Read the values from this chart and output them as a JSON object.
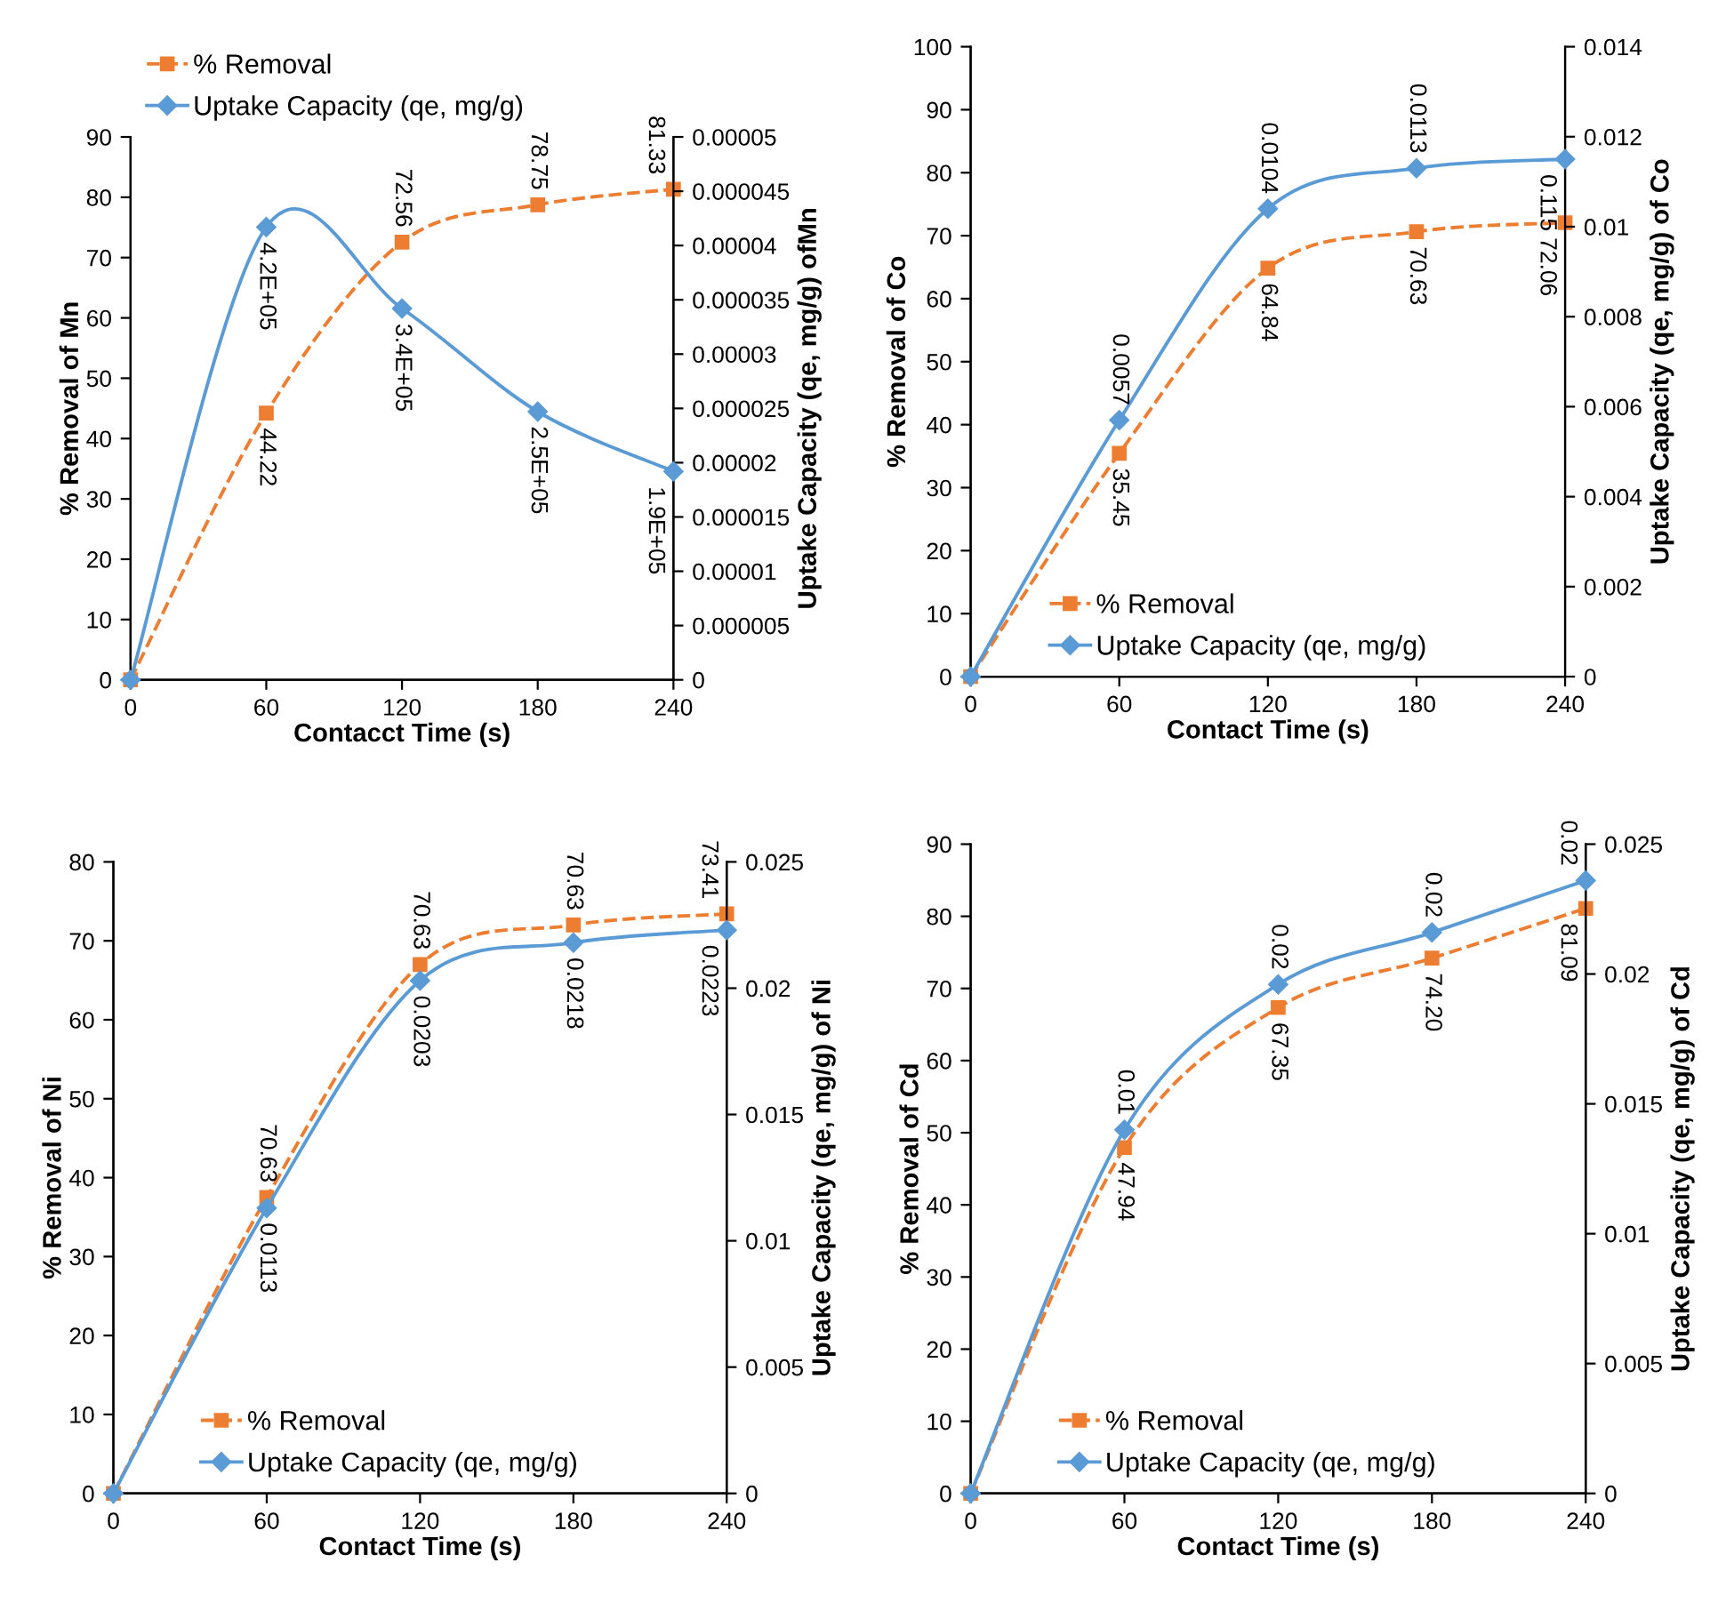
{
  "chart_data": [
    {
      "type": "line",
      "xlabel": "Contacct Time (s)",
      "ylabel": "% Removal of Mn",
      "y2label": "Uptake Capacity (qe, mg/g) ofMn",
      "x": [
        0,
        60,
        120,
        180,
        240
      ],
      "xlim": [
        0,
        240
      ],
      "xticks": [
        0,
        60,
        120,
        180,
        240
      ],
      "ylim": [
        0,
        90
      ],
      "yticks": [
        0,
        10,
        20,
        30,
        40,
        50,
        60,
        70,
        80,
        90
      ],
      "y2lim": [
        0,
        5e-05
      ],
      "y2ticks": [
        0,
        {
          "value": 5e-06,
          "label": "0.000005"
        },
        {
          "value": 1e-05,
          "label": "0.00001"
        },
        {
          "value": 1.5e-05,
          "label": "0.000015"
        },
        {
          "value": 2e-05,
          "label": "0.00002"
        },
        {
          "value": 2.5e-05,
          "label": "0.000025"
        },
        {
          "value": 3e-05,
          "label": "0.00003"
        },
        {
          "value": 3.5e-05,
          "label": "0.000035"
        },
        {
          "value": 4e-05,
          "label": "0.00004"
        },
        {
          "value": 4.5e-05,
          "label": "0.000045"
        },
        {
          "value": 5e-05,
          "label": "0.00005"
        }
      ],
      "legend": "top left",
      "grid": false,
      "annotations": [
        {
          "text": "4.2E+05",
          "x": 60,
          "y": 75
        },
        {
          "text": "3.4E+05",
          "x": 120,
          "y": 61.5
        },
        {
          "text": "2.5E+05",
          "x": 180,
          "y": 44.5
        },
        {
          "text": "1.9E+05",
          "x": 240,
          "y": 34.5
        }
      ],
      "series": [
        {
          "name": "% Removal",
          "color": "#ed7d31",
          "marker": "square",
          "line_style": "dashed",
          "values": [
            0,
            44.22,
            72.56,
            78.75,
            81.33
          ],
          "value_labels": [
            null,
            "44.22",
            "72.56",
            "78.75",
            "81.33"
          ]
        },
        {
          "name": "Uptake Capacity (qe, mg/g)",
          "color": "#5b9bd5",
          "marker": "diamond",
          "line_style": "solid",
          "axis": "y2",
          "values": [
            0,
            4.17e-05,
            3.42e-05,
            2.47e-05,
            1.92e-05
          ]
        }
      ]
    },
    {
      "type": "line",
      "xlabel": "Contact Time (s)",
      "ylabel": "% Removal of Co",
      "y2label": "Uptake Capacity (qe, mg/g) of Co",
      "x": [
        0,
        60,
        120,
        180,
        240
      ],
      "xlim": [
        0,
        240
      ],
      "xticks": [
        0,
        60,
        120,
        180,
        240
      ],
      "ylim": [
        0,
        100
      ],
      "yticks": [
        0,
        10,
        20,
        30,
        40,
        50,
        60,
        70,
        80,
        90,
        100
      ],
      "y2lim": [
        0,
        0.014
      ],
      "y2ticks": [
        0,
        0.002,
        0.004,
        0.006,
        0.008,
        0.01,
        0.012,
        0.014
      ],
      "legend": "bottom",
      "grid": false,
      "annotations": [
        {
          "text": "0.115",
          "x": 240,
          "y": 82.1
        }
      ],
      "series": [
        {
          "name": "% Removal",
          "color": "#ed7d31",
          "marker": "square",
          "line_style": "dashed",
          "values": [
            0,
            35.45,
            64.84,
            70.63,
            72.06
          ],
          "value_labels": [
            null,
            "35.45",
            "64.84",
            "70.63",
            "72.06"
          ]
        },
        {
          "name": "Uptake Capacity (qe, mg/g)",
          "color": "#5b9bd5",
          "marker": "diamond",
          "line_style": "solid",
          "axis": "y2",
          "values": [
            0,
            0.0057,
            0.0104,
            0.0113,
            0.0115
          ],
          "value_labels": [
            null,
            "0.0057",
            "0.0104",
            "0.0113",
            null
          ]
        }
      ]
    },
    {
      "type": "line",
      "xlabel": "Contact Time (s)",
      "ylabel": "% Removal of Ni",
      "y2label": "Uptake Capacity (qe, mg/g) of Ni",
      "x": [
        0,
        60,
        120,
        180,
        240
      ],
      "xlim": [
        0,
        240
      ],
      "xticks": [
        0,
        60,
        120,
        180,
        240
      ],
      "ylim": [
        0,
        80
      ],
      "yticks": [
        0,
        10,
        20,
        30,
        40,
        50,
        60,
        70,
        80
      ],
      "y2lim": [
        0,
        0.025
      ],
      "y2ticks": [
        0,
        0.005,
        0.01,
        0.015,
        0.02,
        0.025
      ],
      "legend": "bottom",
      "grid": false,
      "annotations": [
        {
          "text": "70.63",
          "x": 60,
          "y": 37.5
        },
        {
          "text": "70.63",
          "x": 120,
          "y": 67
        },
        {
          "text": "70.63",
          "x": 180,
          "y": 72
        }
      ],
      "series": [
        {
          "name": "% Removal",
          "color": "#ed7d31",
          "marker": "square",
          "line_style": "dashed",
          "values": [
            0,
            37.5,
            67,
            72,
            73.41
          ],
          "value_labels": [
            null,
            null,
            null,
            null,
            "73.41"
          ]
        },
        {
          "name": "Uptake Capacity (qe, mg/g)",
          "color": "#5b9bd5",
          "marker": "diamond",
          "line_style": "solid",
          "axis": "y2",
          "values": [
            0,
            0.0113,
            0.0203,
            0.0218,
            0.0223
          ],
          "value_labels": [
            null,
            "0.0113",
            "0.0203",
            "0.0218",
            "0.0223"
          ]
        }
      ]
    },
    {
      "type": "line",
      "xlabel": "Contact Time (s)",
      "ylabel": "% Removal of Cd",
      "y2label": "Uptake Capacity (qe, mg/g) of Cd",
      "x": [
        0,
        60,
        120,
        180,
        240
      ],
      "xlim": [
        0,
        240
      ],
      "xticks": [
        0,
        60,
        120,
        180,
        240
      ],
      "ylim": [
        0,
        90
      ],
      "yticks": [
        0,
        10,
        20,
        30,
        40,
        50,
        60,
        70,
        80,
        90
      ],
      "y2lim": [
        0,
        0.025
      ],
      "y2ticks": [
        0,
        0.005,
        0.01,
        0.015,
        0.02,
        0.025
      ],
      "legend": "bottom",
      "grid": false,
      "series": [
        {
          "name": "% Removal",
          "color": "#ed7d31",
          "marker": "square",
          "line_style": "dashed",
          "values": [
            0,
            47.94,
            67.35,
            74.2,
            81.09
          ],
          "value_labels": [
            null,
            "47.94",
            "67.35",
            "74.20",
            "81.09"
          ]
        },
        {
          "name": "Uptake Capacity (qe, mg/g)",
          "color": "#5b9bd5",
          "marker": "diamond",
          "line_style": "solid",
          "axis": "y2",
          "values": [
            0,
            0.014,
            0.0196,
            0.0216,
            0.0236
          ],
          "value_labels": [
            null,
            "0.01",
            "0.02",
            "0.02",
            "0.02"
          ]
        }
      ]
    }
  ]
}
